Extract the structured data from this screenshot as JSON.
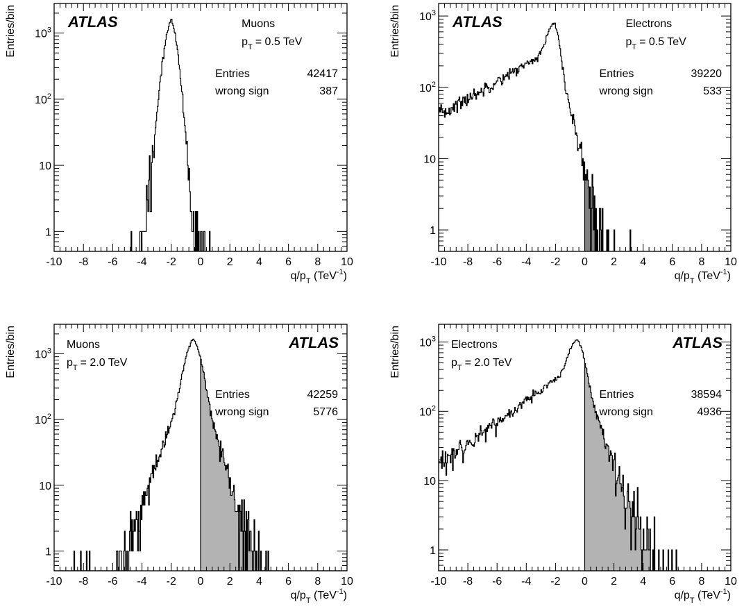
{
  "chart_data": [
    {
      "type": "histogram",
      "particle": "Muons",
      "pt_prefix": "p",
      "pt_subscript": "T",
      "pt_suffix": "= 0.5 TeV",
      "experiment": "ATLAS",
      "stats": {
        "entries_label": "Entries",
        "entries_value": "42417",
        "wrong_sign_label": "wrong sign",
        "wrong_sign_value": "387"
      },
      "ylabel": "Entries/bin",
      "xlabel_main": "q/p",
      "xlabel_sub": "T",
      "xlabel_unit_open": " (TeV",
      "xlabel_unit_sup": "-1",
      "xlabel_unit_close": ")",
      "xlim": [
        -10,
        10
      ],
      "ylim": [
        0.5,
        2800
      ],
      "log_y": true,
      "x_ticks": [
        "-10",
        "-8",
        "-6",
        "-4",
        "-2",
        "0",
        "2",
        "4",
        "6",
        "8",
        "10"
      ],
      "y_ticks": [
        {
          "value": 1,
          "label": "1"
        },
        {
          "value": 10,
          "label": "10"
        },
        {
          "value": 100,
          "label": "10",
          "exp": "2"
        },
        {
          "value": 1000,
          "label": "10",
          "exp": "3"
        }
      ],
      "peak_x": -2.0,
      "peak_y": 1700,
      "shape": {
        "sigma_left": 0.38,
        "sigma_right": 0.33,
        "lam_left": 0.29,
        "lam_right": 0.25,
        "floor": 0
      },
      "wrong_sign_shaded": "x > 0",
      "shade_color": "#aaaaaa",
      "atlas_position": "top-left",
      "info_position": "top-right"
    },
    {
      "type": "histogram",
      "particle": "Electrons",
      "pt_prefix": "p",
      "pt_subscript": "T",
      "pt_suffix": "= 0.5 TeV",
      "experiment": "ATLAS",
      "stats": {
        "entries_label": "Entries",
        "entries_value": "39220",
        "wrong_sign_label": "wrong sign",
        "wrong_sign_value": "533"
      },
      "ylabel": "Entries/bin",
      "xlabel_main": "q/p",
      "xlabel_sub": "T",
      "xlabel_unit_open": " (TeV",
      "xlabel_unit_sup": "-1",
      "xlabel_unit_close": ")",
      "xlim": [
        -10,
        10
      ],
      "ylim": [
        0.5,
        1500
      ],
      "log_y": true,
      "x_ticks": [
        "-10",
        "-8",
        "-6",
        "-4",
        "-2",
        "0",
        "2",
        "4",
        "6",
        "8",
        "10"
      ],
      "y_ticks": [
        {
          "value": 1,
          "label": "1"
        },
        {
          "value": 10,
          "label": "10"
        },
        {
          "value": 100,
          "label": "10",
          "exp": "2"
        },
        {
          "value": 1000,
          "label": "10",
          "exp": "3"
        }
      ],
      "peak_x": -2.1,
      "peak_y": 800,
      "shape": {
        "sigma_left": 0.38,
        "sigma_right": 0.3,
        "lam_left": 3.6,
        "lam_right": 0.55,
        "floor": 0
      },
      "wrong_sign_shaded": "x > 0",
      "shade_color": "#808080",
      "atlas_position": "top-left",
      "info_position": "top-right"
    },
    {
      "type": "histogram",
      "particle": "Muons",
      "pt_prefix": "p",
      "pt_subscript": "T",
      "pt_suffix": "= 2.0 TeV",
      "experiment": "ATLAS",
      "stats": {
        "entries_label": "Entries",
        "entries_value": "42259",
        "wrong_sign_label": "wrong sign",
        "wrong_sign_value": "5776"
      },
      "ylabel": "Entries/bin",
      "xlabel_main": "q/p",
      "xlabel_sub": "T",
      "xlabel_unit_open": " (TeV",
      "xlabel_unit_sup": "-1",
      "xlabel_unit_close": ")",
      "xlim": [
        -10,
        10
      ],
      "ylim": [
        0.5,
        2800
      ],
      "log_y": true,
      "x_ticks": [
        "-10",
        "-8",
        "-6",
        "-4",
        "-2",
        "0",
        "2",
        "4",
        "6",
        "8",
        "10"
      ],
      "y_ticks": [
        {
          "value": 1,
          "label": "1"
        },
        {
          "value": 10,
          "label": "10"
        },
        {
          "value": 100,
          "label": "10",
          "exp": "2"
        },
        {
          "value": 1000,
          "label": "10",
          "exp": "3"
        }
      ],
      "peak_x": -0.5,
      "peak_y": 1700,
      "shape": {
        "sigma_left": 0.45,
        "sigma_right": 0.45,
        "lam_left": 0.7,
        "lam_right": 0.6,
        "floor": 0
      },
      "wrong_sign_shaded": "x > 0",
      "shade_color": "#b3b3b3",
      "atlas_position": "top-right",
      "info_position": "top-left"
    },
    {
      "type": "histogram",
      "particle": "Electrons",
      "pt_prefix": "p",
      "pt_subscript": "T",
      "pt_suffix": "= 2.0 TeV",
      "experiment": "ATLAS",
      "stats": {
        "entries_label": "Entries",
        "entries_value": "38594",
        "wrong_sign_label": "wrong sign",
        "wrong_sign_value": "4936"
      },
      "ylabel": "Entries/bin",
      "xlabel_main": "q/p",
      "xlabel_sub": "T",
      "xlabel_unit_open": " (TeV",
      "xlabel_unit_sup": "-1",
      "xlabel_unit_close": ")",
      "xlim": [
        -10,
        10
      ],
      "ylim": [
        0.5,
        1800
      ],
      "log_y": true,
      "x_ticks": [
        "-10",
        "-8",
        "-6",
        "-4",
        "-2",
        "0",
        "2",
        "4",
        "6",
        "8",
        "10"
      ],
      "y_ticks": [
        {
          "value": 1,
          "label": "1"
        },
        {
          "value": 10,
          "label": "10"
        },
        {
          "value": 100,
          "label": "10",
          "exp": "2"
        },
        {
          "value": 1000,
          "label": "10",
          "exp": "3"
        }
      ],
      "peak_x": -0.5,
      "peak_y": 1100,
      "shape": {
        "sigma_left": 0.45,
        "sigma_right": 0.4,
        "lam_left": 2.8,
        "lam_right": 0.75,
        "floor": 0
      },
      "wrong_sign_shaded": "x > 0",
      "shade_color": "#b3b3b3",
      "atlas_position": "top-right",
      "info_position": "top-left"
    }
  ]
}
